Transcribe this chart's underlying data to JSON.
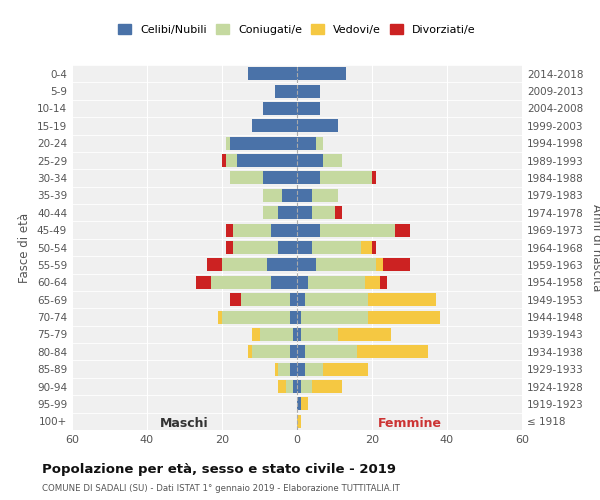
{
  "age_groups": [
    "0-4",
    "5-9",
    "10-14",
    "15-19",
    "20-24",
    "25-29",
    "30-34",
    "35-39",
    "40-44",
    "45-49",
    "50-54",
    "55-59",
    "60-64",
    "65-69",
    "70-74",
    "75-79",
    "80-84",
    "85-89",
    "90-94",
    "95-99",
    "100+"
  ],
  "birth_years": [
    "2014-2018",
    "2009-2013",
    "2004-2008",
    "1999-2003",
    "1994-1998",
    "1989-1993",
    "1984-1988",
    "1979-1983",
    "1974-1978",
    "1969-1973",
    "1964-1968",
    "1959-1963",
    "1954-1958",
    "1949-1953",
    "1944-1948",
    "1939-1943",
    "1934-1938",
    "1929-1933",
    "1924-1928",
    "1919-1923",
    "≤ 1918"
  ],
  "colors": {
    "celibi": "#4a72a8",
    "coniugati": "#c5d9a0",
    "vedovi": "#f5c842",
    "divorziati": "#cc2222"
  },
  "maschi": {
    "celibi": [
      13,
      6,
      9,
      12,
      18,
      16,
      9,
      4,
      5,
      7,
      5,
      8,
      7,
      2,
      2,
      1,
      2,
      2,
      1,
      0,
      0
    ],
    "coniugati": [
      0,
      0,
      0,
      0,
      1,
      3,
      9,
      5,
      4,
      10,
      12,
      12,
      16,
      13,
      18,
      9,
      10,
      3,
      2,
      0,
      0
    ],
    "vedovi": [
      0,
      0,
      0,
      0,
      0,
      0,
      0,
      0,
      0,
      0,
      0,
      0,
      0,
      0,
      1,
      2,
      1,
      1,
      2,
      0,
      0
    ],
    "divorziati": [
      0,
      0,
      0,
      0,
      0,
      1,
      0,
      0,
      0,
      2,
      2,
      4,
      4,
      3,
      0,
      0,
      0,
      0,
      0,
      0,
      0
    ]
  },
  "femmine": {
    "celibi": [
      13,
      6,
      6,
      11,
      5,
      7,
      6,
      4,
      4,
      6,
      4,
      5,
      3,
      2,
      1,
      1,
      2,
      2,
      1,
      1,
      0
    ],
    "coniugati": [
      0,
      0,
      0,
      0,
      2,
      5,
      14,
      7,
      6,
      20,
      13,
      16,
      15,
      17,
      18,
      10,
      14,
      5,
      3,
      0,
      0
    ],
    "vedovi": [
      0,
      0,
      0,
      0,
      0,
      0,
      0,
      0,
      0,
      0,
      3,
      2,
      4,
      18,
      19,
      14,
      19,
      12,
      8,
      2,
      1
    ],
    "divorziati": [
      0,
      0,
      0,
      0,
      0,
      0,
      1,
      0,
      2,
      4,
      1,
      7,
      2,
      0,
      0,
      0,
      0,
      0,
      0,
      0,
      0
    ]
  },
  "xlim": 60,
  "title": "Popolazione per età, sesso e stato civile - 2019",
  "subtitle": "COMUNE DI SADALI (SU) - Dati ISTAT 1° gennaio 2019 - Elaborazione TUTTITALIA.IT",
  "ylabel_left": "Fasce di età",
  "ylabel_right": "Anni di nascita",
  "xlabel_maschi": "Maschi",
  "xlabel_femmine": "Femmine",
  "legend_labels": [
    "Celibi/Nubili",
    "Coniugati/e",
    "Vedovi/e",
    "Divorziati/e"
  ],
  "background_color": "#f0f0f0"
}
